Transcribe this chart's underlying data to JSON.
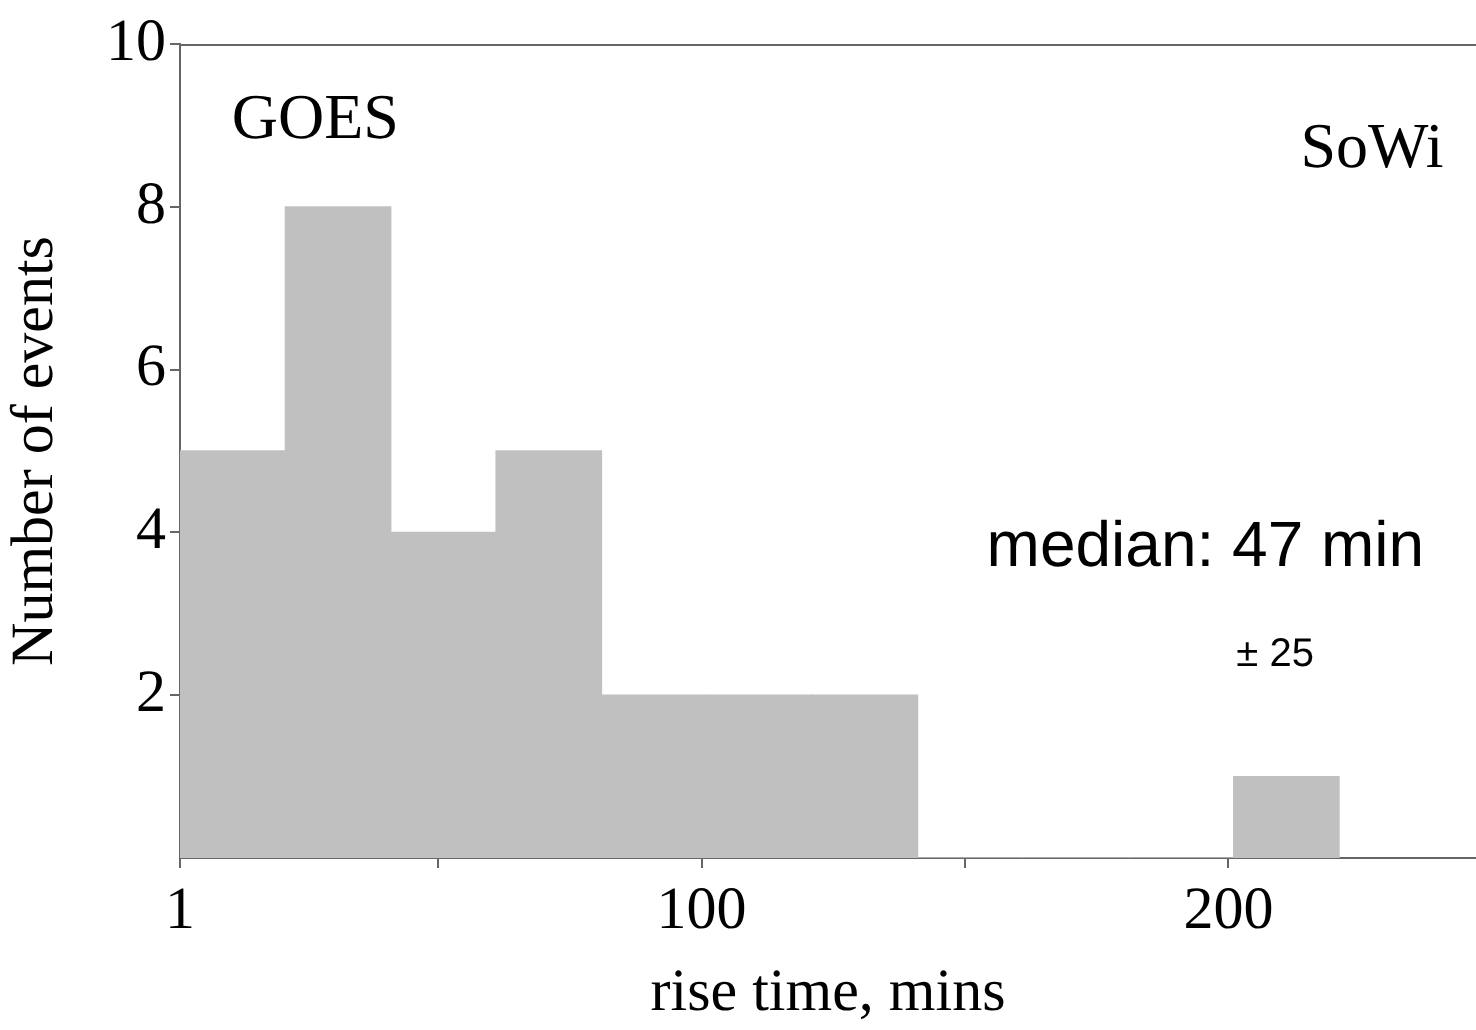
{
  "chart_data": {
    "type": "histogram",
    "xlabel": "rise time, mins",
    "ylabel": "Number of events",
    "bins": [
      1,
      21,
      41,
      61,
      81,
      101,
      121,
      141,
      161,
      181,
      201,
      221
    ],
    "values": [
      5,
      8,
      4,
      5,
      2,
      2,
      2,
      0,
      0,
      0,
      1
    ],
    "color": "#c0c0c0",
    "xlim": [
      1,
      247
    ],
    "xticks": [
      1,
      {
        "value": 50,
        "label": null
      },
      100,
      {
        "value": 150,
        "label": null
      },
      200
    ],
    "ylim": [
      0,
      10
    ],
    "yticks": [
      2,
      4,
      6,
      8,
      10
    ],
    "grid": false,
    "legend": false,
    "annotations": [
      "GOES",
      "SoWi",
      "median: 47 min",
      "± 25"
    ]
  }
}
